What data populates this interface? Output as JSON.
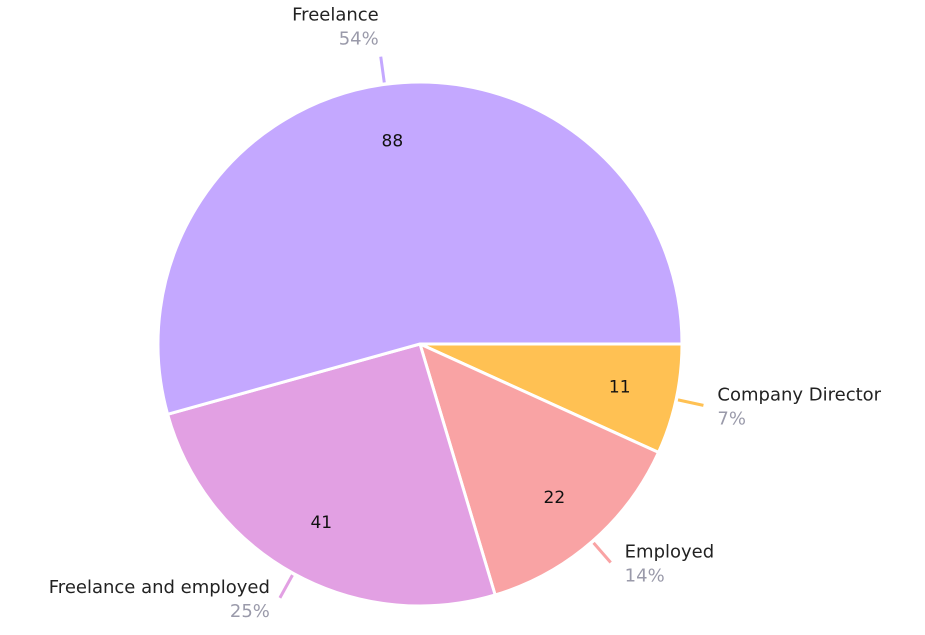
{
  "chart_data": {
    "type": "pie",
    "categories": [
      "Company Director",
      "Employed",
      "Freelance and employed",
      "Freelance"
    ],
    "values": [
      11,
      22,
      41,
      88
    ],
    "share_labels": [
      "7%",
      "14%",
      "25%",
      "54%"
    ],
    "colors": [
      "#ffc153",
      "#f9a3a4",
      "#e2a0e3",
      "#c4a8ff"
    ]
  }
}
